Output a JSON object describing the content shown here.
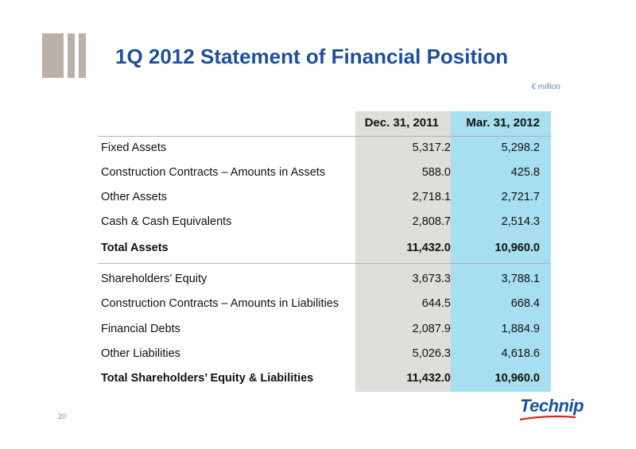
{
  "slide": {
    "title": "1Q 2012 Statement of Financial Position",
    "unit": "€ million",
    "page_number": "20",
    "logo_text": "Technip"
  },
  "table": {
    "headers": [
      "Dec. 31, 2011",
      "Mar. 31, 2012"
    ],
    "rows": [
      {
        "label": "Fixed Assets",
        "dec": "5,317.2",
        "mar": "5,298.2",
        "total": false
      },
      {
        "label": "Construction Contracts – Amounts in Assets",
        "dec": "588.0",
        "mar": "425.8",
        "total": false
      },
      {
        "label": "Other Assets",
        "dec": "2,718.1",
        "mar": "2,721.7",
        "total": false
      },
      {
        "label": "Cash & Cash Equivalents",
        "dec": "2,808.7",
        "mar": "2,514.3",
        "total": false
      },
      {
        "label": "Total Assets",
        "dec": "11,432.0",
        "mar": "10,960.0",
        "total": true
      },
      {
        "label": "Shareholders’ Equity",
        "dec": "3,673.3",
        "mar": "3,788.1",
        "total": false
      },
      {
        "label": "Construction Contracts – Amounts in Liabilities",
        "dec": "644.5",
        "mar": "668.4",
        "total": false
      },
      {
        "label": "Financial Debts",
        "dec": "2,087.9",
        "mar": "1,884.9",
        "total": false
      },
      {
        "label": "Other Liabilities",
        "dec": "5,026.3",
        "mar": "4,618.6",
        "total": false
      },
      {
        "label": "Total Shareholders’ Equity & Liabilities",
        "dec": "11,432.0",
        "mar": "10,960.0",
        "total": true
      }
    ]
  },
  "colors": {
    "title": "#1d4f9d",
    "dec_column": "#dfdedb",
    "mar_column": "#a7def0",
    "logo": "#1d4f9d",
    "logo_swoosh": "#e2231a"
  }
}
